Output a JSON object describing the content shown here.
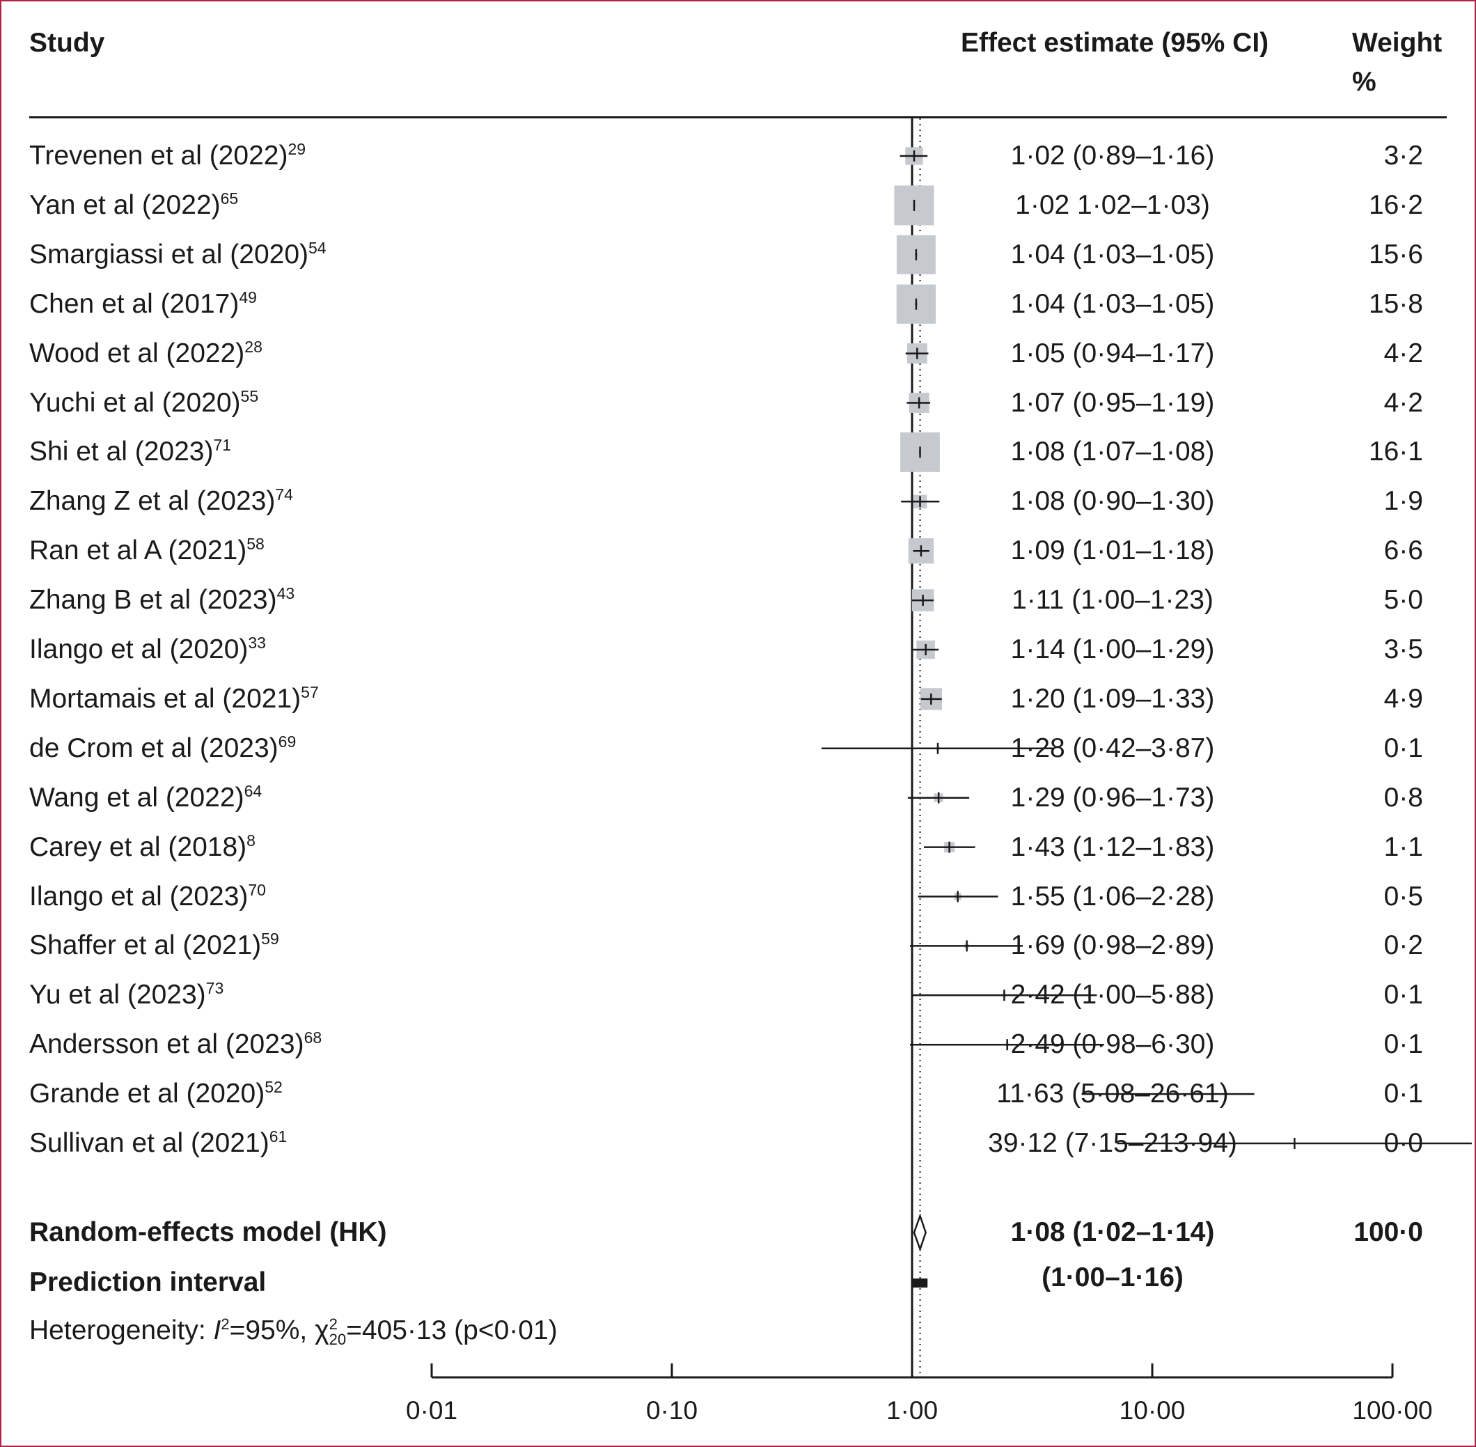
{
  "header": {
    "study": "Study",
    "effect": "Effect estimate (95% CI)",
    "weight_line1": "Weight",
    "weight_line2": "%"
  },
  "chart_data": {
    "type": "forest",
    "x_scale": "log",
    "xlim": [
      0.01,
      100
    ],
    "x_ticks": [
      0.01,
      0.1,
      1,
      10,
      100
    ],
    "x_tick_labels": [
      "0·01",
      "0·10",
      "1·00",
      "10·00",
      "100·00"
    ],
    "null_line": 1,
    "studies": [
      {
        "name": "Trevenen et al (2022)",
        "ref": "29",
        "est": 1.02,
        "lo": 0.89,
        "hi": 1.16,
        "est_label": "1·02 (0·89–1·16)",
        "weight": 3.2,
        "weight_label": "3·2"
      },
      {
        "name": "Yan et al (2022)",
        "ref": "65",
        "est": 1.02,
        "lo": 1.02,
        "hi": 1.03,
        "est_label": "1·02 1·02–1·03)",
        "weight": 16.2,
        "weight_label": "16·2"
      },
      {
        "name": "Smargiassi et al (2020)",
        "ref": "54",
        "est": 1.04,
        "lo": 1.03,
        "hi": 1.05,
        "est_label": "1·04 (1·03–1·05)",
        "weight": 15.6,
        "weight_label": "15·6"
      },
      {
        "name": "Chen et al (2017)",
        "ref": "49",
        "est": 1.04,
        "lo": 1.03,
        "hi": 1.05,
        "est_label": "1·04 (1·03–1·05)",
        "weight": 15.8,
        "weight_label": "15·8"
      },
      {
        "name": "Wood et al (2022)",
        "ref": "28",
        "est": 1.05,
        "lo": 0.94,
        "hi": 1.17,
        "est_label": "1·05 (0·94–1·17)",
        "weight": 4.2,
        "weight_label": "4·2"
      },
      {
        "name": "Yuchi et al (2020)",
        "ref": "55",
        "est": 1.07,
        "lo": 0.95,
        "hi": 1.19,
        "est_label": "1·07 (0·95–1·19)",
        "weight": 4.2,
        "weight_label": "4·2"
      },
      {
        "name": "Shi et al (2023)",
        "ref": "71",
        "est": 1.08,
        "lo": 1.07,
        "hi": 1.08,
        "est_label": "1·08 (1·07–1·08)",
        "weight": 16.1,
        "weight_label": "16·1"
      },
      {
        "name": "Zhang Z et al (2023)",
        "ref": "74",
        "est": 1.08,
        "lo": 0.9,
        "hi": 1.3,
        "est_label": "1·08 (0·90–1·30)",
        "weight": 1.9,
        "weight_label": "1·9"
      },
      {
        "name": "Ran et al A (2021)",
        "ref": "58",
        "est": 1.09,
        "lo": 1.01,
        "hi": 1.18,
        "est_label": "1·09 (1·01–1·18)",
        "weight": 6.6,
        "weight_label": "6·6"
      },
      {
        "name": "Zhang B et al (2023)",
        "ref": "43",
        "est": 1.11,
        "lo": 1.0,
        "hi": 1.23,
        "est_label": "1·11 (1·00–1·23)",
        "weight": 5.0,
        "weight_label": "5·0"
      },
      {
        "name": "Ilango et al (2020)",
        "ref": "33",
        "est": 1.14,
        "lo": 1.0,
        "hi": 1.29,
        "est_label": "1·14 (1·00–1·29)",
        "weight": 3.5,
        "weight_label": "3·5"
      },
      {
        "name": "Mortamais et al (2021)",
        "ref": "57",
        "est": 1.2,
        "lo": 1.09,
        "hi": 1.33,
        "est_label": "1·20 (1·09–1·33)",
        "weight": 4.9,
        "weight_label": "4·9"
      },
      {
        "name": "de Crom et al (2023)",
        "ref": "69",
        "est": 1.28,
        "lo": 0.42,
        "hi": 3.87,
        "est_label": "1·28 (0·42–3·87)",
        "weight": 0.1,
        "weight_label": "0·1"
      },
      {
        "name": "Wang et al (2022)",
        "ref": "64",
        "est": 1.29,
        "lo": 0.96,
        "hi": 1.73,
        "est_label": "1·29 (0·96–1·73)",
        "weight": 0.8,
        "weight_label": "0·8"
      },
      {
        "name": "Carey et al (2018)",
        "ref": "8",
        "est": 1.43,
        "lo": 1.12,
        "hi": 1.83,
        "est_label": "1·43 (1·12–1·83)",
        "weight": 1.1,
        "weight_label": "1·1"
      },
      {
        "name": "Ilango et al (2023)",
        "ref": "70",
        "est": 1.55,
        "lo": 1.06,
        "hi": 2.28,
        "est_label": "1·55 (1·06–2·28)",
        "weight": 0.5,
        "weight_label": "0·5"
      },
      {
        "name": "Shaffer et al (2021)",
        "ref": "59",
        "est": 1.69,
        "lo": 0.98,
        "hi": 2.89,
        "est_label": "1·69 (0·98–2·89)",
        "weight": 0.2,
        "weight_label": "0·2"
      },
      {
        "name": "Yu et al (2023)",
        "ref": "73",
        "est": 2.42,
        "lo": 1.0,
        "hi": 5.88,
        "est_label": "2·42 (1·00–5·88)",
        "weight": 0.1,
        "weight_label": "0·1"
      },
      {
        "name": "Andersson et al (2023)",
        "ref": "68",
        "est": 2.49,
        "lo": 0.98,
        "hi": 6.3,
        "est_label": "2·49 (0·98–6·30)",
        "weight": 0.1,
        "weight_label": "0·1"
      },
      {
        "name": "Grande et al (2020)",
        "ref": "52",
        "est": 11.63,
        "lo": 5.08,
        "hi": 26.61,
        "est_label": "11·63 (5·08–26·61)",
        "weight": 0.1,
        "weight_label": "0·1"
      },
      {
        "name": "Sullivan et al (2021)",
        "ref": "61",
        "est": 39.12,
        "lo": 7.15,
        "hi": 213.94,
        "est_label": "39·12 (7·15–213·94)",
        "weight": 0.0,
        "weight_label": "0·0"
      }
    ],
    "pooled": {
      "name": "Random-effects model (HK)",
      "est": 1.08,
      "lo": 1.02,
      "hi": 1.14,
      "est_label": "1·08 (1·02–1·14)",
      "weight_label": "100·0"
    },
    "prediction_interval": {
      "name": "Prediction interval",
      "lo": 1.0,
      "hi": 1.16,
      "est_label": "(1·00–1·16)"
    },
    "heterogeneity": {
      "prefix": "Heterogeneity: ",
      "i_symbol": "I",
      "i_sup": "2",
      "i_value": "=95%, ",
      "chi_symbol": "χ",
      "chi_sup": "2",
      "chi_sub": "20",
      "chi_value": "=405·13 (p<0·01)"
    }
  }
}
